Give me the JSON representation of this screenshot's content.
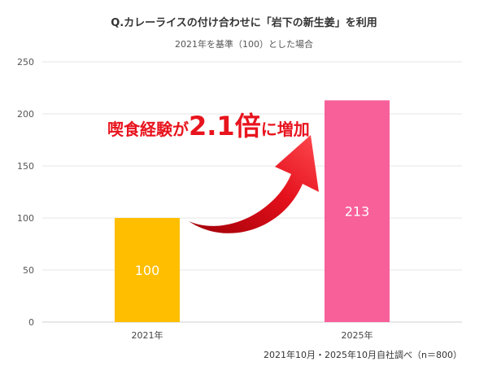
{
  "chart_data": {
    "type": "bar",
    "title": "Q.カレーライスの付け合わせに「岩下の新生姜」を利用",
    "subtitle": "2021年を基準（100）とした場合",
    "categories": [
      "2021年",
      "2025年"
    ],
    "values": [
      100,
      213
    ],
    "ylim": [
      0,
      250
    ],
    "yticks": [
      0,
      50,
      100,
      150,
      200,
      250
    ],
    "value_labels": [
      "100",
      "213"
    ],
    "bar_colors": [
      "#ffbe00",
      "#f8609a"
    ],
    "grid": true,
    "legend": "none",
    "annotation": {
      "prefix": "喫食経験が",
      "emphasis": "2.1倍",
      "suffix": "に増加",
      "color": "#e8141e"
    },
    "source_note": "2021年10月・2025年10月自社調べ（n＝800）"
  }
}
